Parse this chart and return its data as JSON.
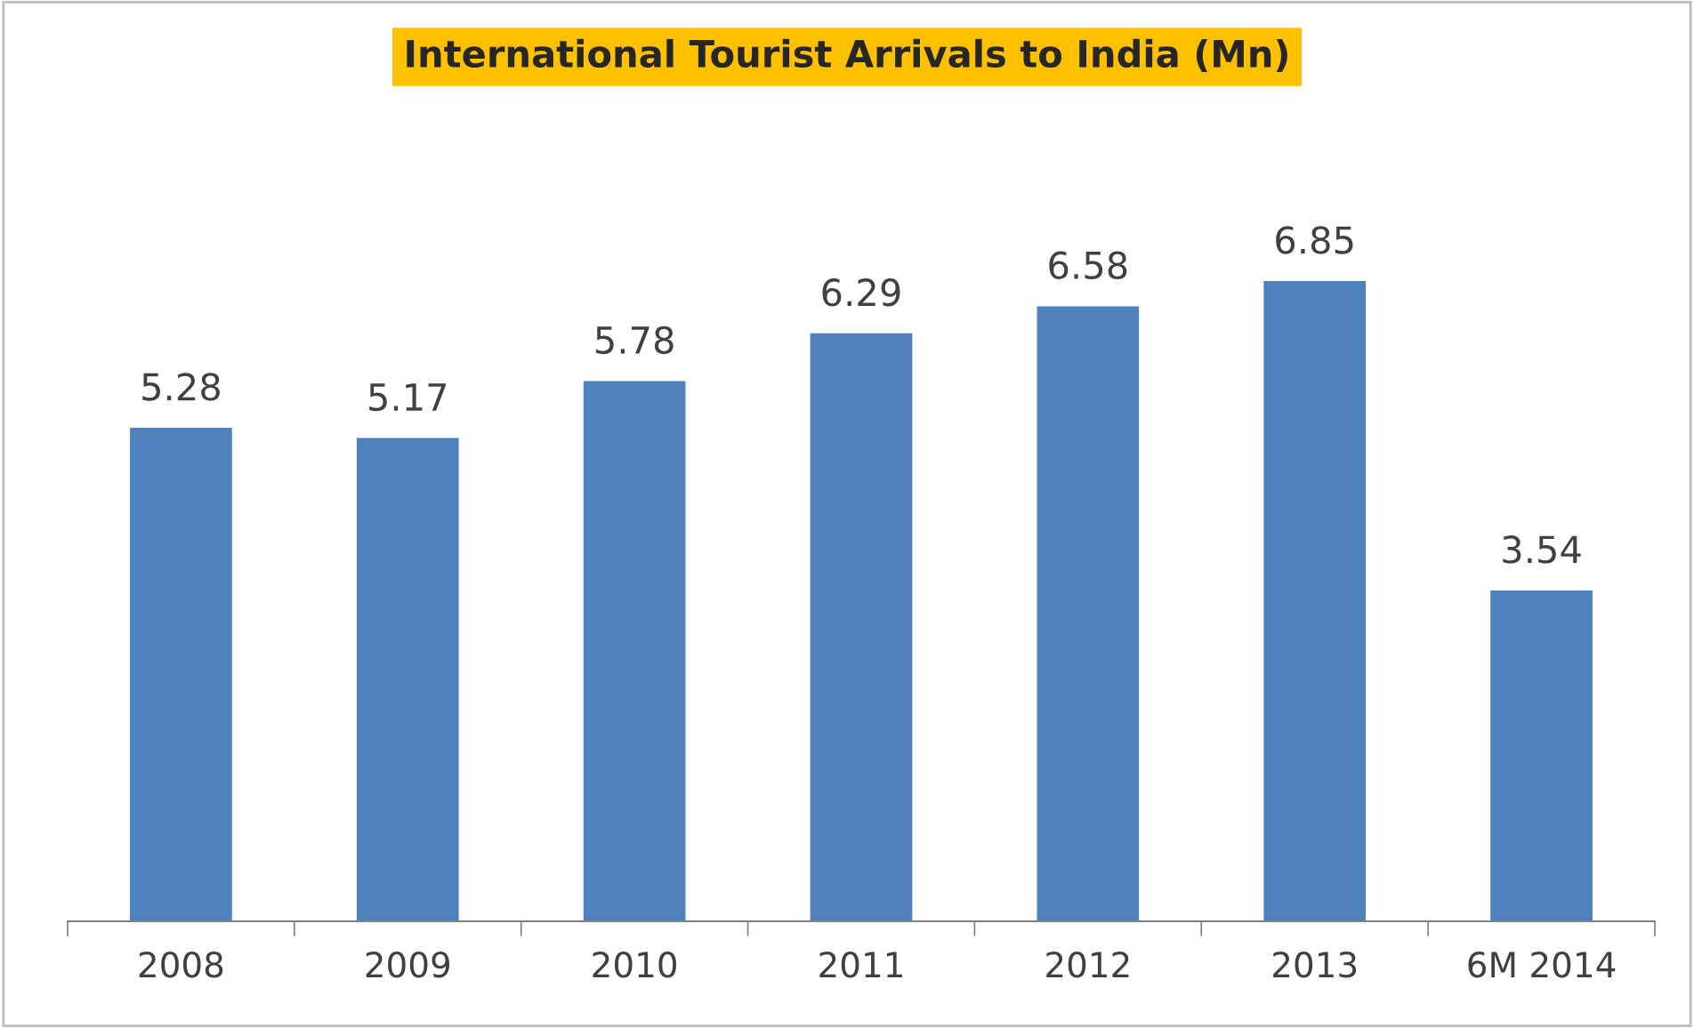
{
  "chart_data": {
    "type": "bar",
    "title": "International Tourist Arrivals to India (Mn)",
    "categories": [
      "2008",
      "2009",
      "2010",
      "2011",
      "2012",
      "2013",
      "6M 2014"
    ],
    "values": [
      5.28,
      5.17,
      5.78,
      6.29,
      6.58,
      6.85,
      3.54
    ],
    "color": "#4f81bd",
    "data_labels": true,
    "grid": false,
    "legend": false
  }
}
